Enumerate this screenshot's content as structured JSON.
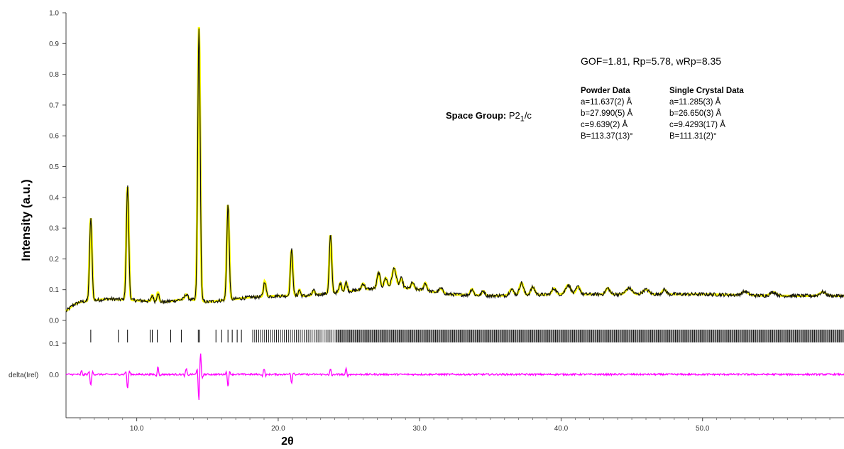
{
  "chart_data": {
    "type": "line",
    "xlabel": "2θ",
    "ylabel": "Intensity (a.u.)",
    "diff_label": "delta(Irel)",
    "xlim": [
      5.0,
      60.0
    ],
    "ylim": [
      0.0,
      1.0
    ],
    "x_ticks": [
      "10.0",
      "20.0",
      "30.0",
      "40.0",
      "50.0"
    ],
    "y_ticks": [
      "0.0",
      "0.1",
      "0.2",
      "0.3",
      "0.4",
      "0.5",
      "0.6",
      "0.7",
      "0.8",
      "0.9",
      "1.0"
    ],
    "reflection_tick_label": "0.1",
    "diff_zero_label": "0.0",
    "background": [
      [
        5.0,
        0.03
      ],
      [
        5.5,
        0.05
      ],
      [
        6.0,
        0.06
      ],
      [
        8.0,
        0.07
      ],
      [
        12.0,
        0.06
      ],
      [
        13.5,
        0.07
      ],
      [
        15.0,
        0.06
      ],
      [
        18.0,
        0.075
      ],
      [
        20.0,
        0.08
      ],
      [
        22.0,
        0.08
      ],
      [
        24.0,
        0.09
      ],
      [
        26.0,
        0.1
      ],
      [
        28.0,
        0.11
      ],
      [
        30.0,
        0.1
      ],
      [
        32.0,
        0.085
      ],
      [
        35.0,
        0.08
      ],
      [
        40.0,
        0.085
      ],
      [
        45.0,
        0.085
      ],
      [
        50.0,
        0.085
      ],
      [
        55.0,
        0.08
      ],
      [
        60.0,
        0.08
      ]
    ],
    "peaks": [
      {
        "pos": 6.75,
        "height": 0.27,
        "width": 0.12
      },
      {
        "pos": 9.35,
        "height": 0.37,
        "width": 0.12
      },
      {
        "pos": 11.1,
        "height": 0.02,
        "width": 0.1
      },
      {
        "pos": 11.5,
        "height": 0.03,
        "width": 0.1
      },
      {
        "pos": 13.5,
        "height": 0.015,
        "width": 0.15
      },
      {
        "pos": 14.4,
        "height": 0.89,
        "width": 0.12
      },
      {
        "pos": 16.45,
        "height": 0.31,
        "width": 0.12
      },
      {
        "pos": 19.05,
        "height": 0.05,
        "width": 0.12
      },
      {
        "pos": 20.95,
        "height": 0.15,
        "width": 0.12
      },
      {
        "pos": 21.5,
        "height": 0.02,
        "width": 0.1
      },
      {
        "pos": 22.5,
        "height": 0.015,
        "width": 0.12
      },
      {
        "pos": 23.7,
        "height": 0.19,
        "width": 0.12
      },
      {
        "pos": 24.4,
        "height": 0.03,
        "width": 0.12
      },
      {
        "pos": 24.8,
        "height": 0.03,
        "width": 0.12
      },
      {
        "pos": 26.0,
        "height": 0.02,
        "width": 0.15
      },
      {
        "pos": 27.1,
        "height": 0.05,
        "width": 0.15
      },
      {
        "pos": 27.6,
        "height": 0.03,
        "width": 0.15
      },
      {
        "pos": 28.2,
        "height": 0.06,
        "width": 0.2
      },
      {
        "pos": 28.7,
        "height": 0.03,
        "width": 0.15
      },
      {
        "pos": 29.5,
        "height": 0.02,
        "width": 0.15
      },
      {
        "pos": 30.4,
        "height": 0.025,
        "width": 0.15
      },
      {
        "pos": 31.5,
        "height": 0.015,
        "width": 0.2
      },
      {
        "pos": 33.7,
        "height": 0.02,
        "width": 0.15
      },
      {
        "pos": 34.5,
        "height": 0.015,
        "width": 0.15
      },
      {
        "pos": 36.5,
        "height": 0.02,
        "width": 0.2
      },
      {
        "pos": 37.2,
        "height": 0.04,
        "width": 0.2
      },
      {
        "pos": 38.0,
        "height": 0.025,
        "width": 0.2
      },
      {
        "pos": 39.5,
        "height": 0.02,
        "width": 0.2
      },
      {
        "pos": 40.5,
        "height": 0.03,
        "width": 0.25
      },
      {
        "pos": 41.2,
        "height": 0.025,
        "width": 0.2
      },
      {
        "pos": 43.3,
        "height": 0.02,
        "width": 0.2
      },
      {
        "pos": 44.8,
        "height": 0.02,
        "width": 0.3
      },
      {
        "pos": 46.0,
        "height": 0.015,
        "width": 0.3
      },
      {
        "pos": 47.3,
        "height": 0.015,
        "width": 0.2
      },
      {
        "pos": 53.0,
        "height": 0.012,
        "width": 0.3
      },
      {
        "pos": 55.0,
        "height": 0.012,
        "width": 0.3
      },
      {
        "pos": 58.5,
        "height": 0.012,
        "width": 0.3
      }
    ],
    "reflection_positions": [
      6.75,
      8.7,
      9.35,
      10.95,
      11.1,
      11.45,
      12.4,
      13.15,
      14.35,
      14.45,
      15.6,
      16.0,
      16.45,
      16.75,
      17.1,
      17.4
    ],
    "dense_reflections_from": 18.2,
    "difference_features": [
      {
        "pos": 6.1,
        "amp": 0.012
      },
      {
        "pos": 6.75,
        "amp": -0.04
      },
      {
        "pos": 9.35,
        "amp": -0.05
      },
      {
        "pos": 11.5,
        "amp": 0.03
      },
      {
        "pos": 13.5,
        "amp": 0.02
      },
      {
        "pos": 14.4,
        "amp": -0.08
      },
      {
        "pos": 14.5,
        "amp": 0.06
      },
      {
        "pos": 16.45,
        "amp": -0.04
      },
      {
        "pos": 19.0,
        "amp": 0.02
      },
      {
        "pos": 20.95,
        "amp": -0.03
      },
      {
        "pos": 23.7,
        "amp": 0.02
      },
      {
        "pos": 24.8,
        "amp": 0.02
      }
    ],
    "series": [
      {
        "role": "observed",
        "color": "#111111"
      },
      {
        "role": "calculated",
        "color": "#ffff00"
      },
      {
        "role": "reflections",
        "color": "#000000"
      },
      {
        "role": "difference",
        "color": "#ff00ff"
      }
    ],
    "annotations": {
      "stats": "GOF=1.81, Rp=5.78, wRp=8.35",
      "space_group_label": "Space Group:",
      "space_group_value": "P2",
      "space_group_sub": "1",
      "space_group_suffix": "/c",
      "powder_title": "Powder Data",
      "powder_lines": [
        "a=11.637(2) Å",
        "b=27.990(5) Å",
        "c=9.639(2) Å",
        "B=113.37(13)°"
      ],
      "single_title": "Single Crystal Data",
      "single_lines": [
        "a=11.285(3) Å",
        "b=26.650(3) Å",
        "c=9.4293(17) Å",
        "B=111.31(2)°"
      ]
    },
    "grid": false,
    "legend": "none"
  }
}
